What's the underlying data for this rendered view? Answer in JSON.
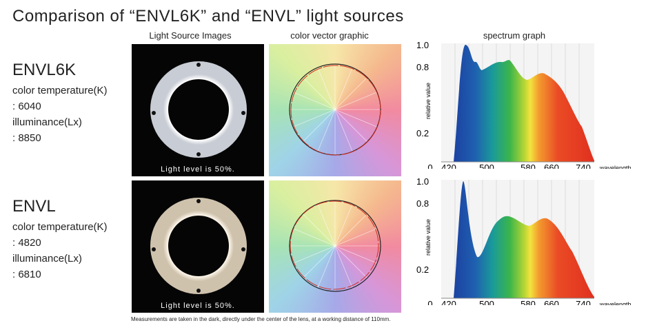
{
  "title": "Comparison of “ENVL6K” and “ENVL” light sources",
  "column_headers": [
    "Light Source Images",
    "color vector graphic",
    "spectrum graph"
  ],
  "rows": [
    {
      "name": "ENVL6K",
      "temp_label": "color temperature(K)",
      "temp_value": ": 6040",
      "lux_label": "illuminance(Lx)",
      "lux_value": ": 8850",
      "image_caption": "Light level is 50%.",
      "spectrum": {
        "y_label": "relative value",
        "x_label": "wavelength",
        "yticks": [
          "1.0",
          "0.8",
          "0.2"
        ],
        "xticks": [
          "0",
          "420",
          "500",
          "580",
          "660",
          "740"
        ]
      }
    },
    {
      "name": "ENVL",
      "temp_label": "color temperature(K)",
      "temp_value": ": 4820",
      "lux_label": "illuminance(Lx)",
      "lux_value": ": 6810",
      "image_caption": "Light level is 50%.",
      "spectrum": {
        "y_label": "relative value",
        "x_label": "wavelength",
        "yticks": [
          "1.0",
          "0.8",
          "0.2"
        ],
        "xticks": [
          "0",
          "420",
          "500",
          "580",
          "660",
          "740"
        ]
      }
    }
  ],
  "footnote": "Measurements are taken in the dark, directly under the center of the lens, at a working distance of 110mm."
}
